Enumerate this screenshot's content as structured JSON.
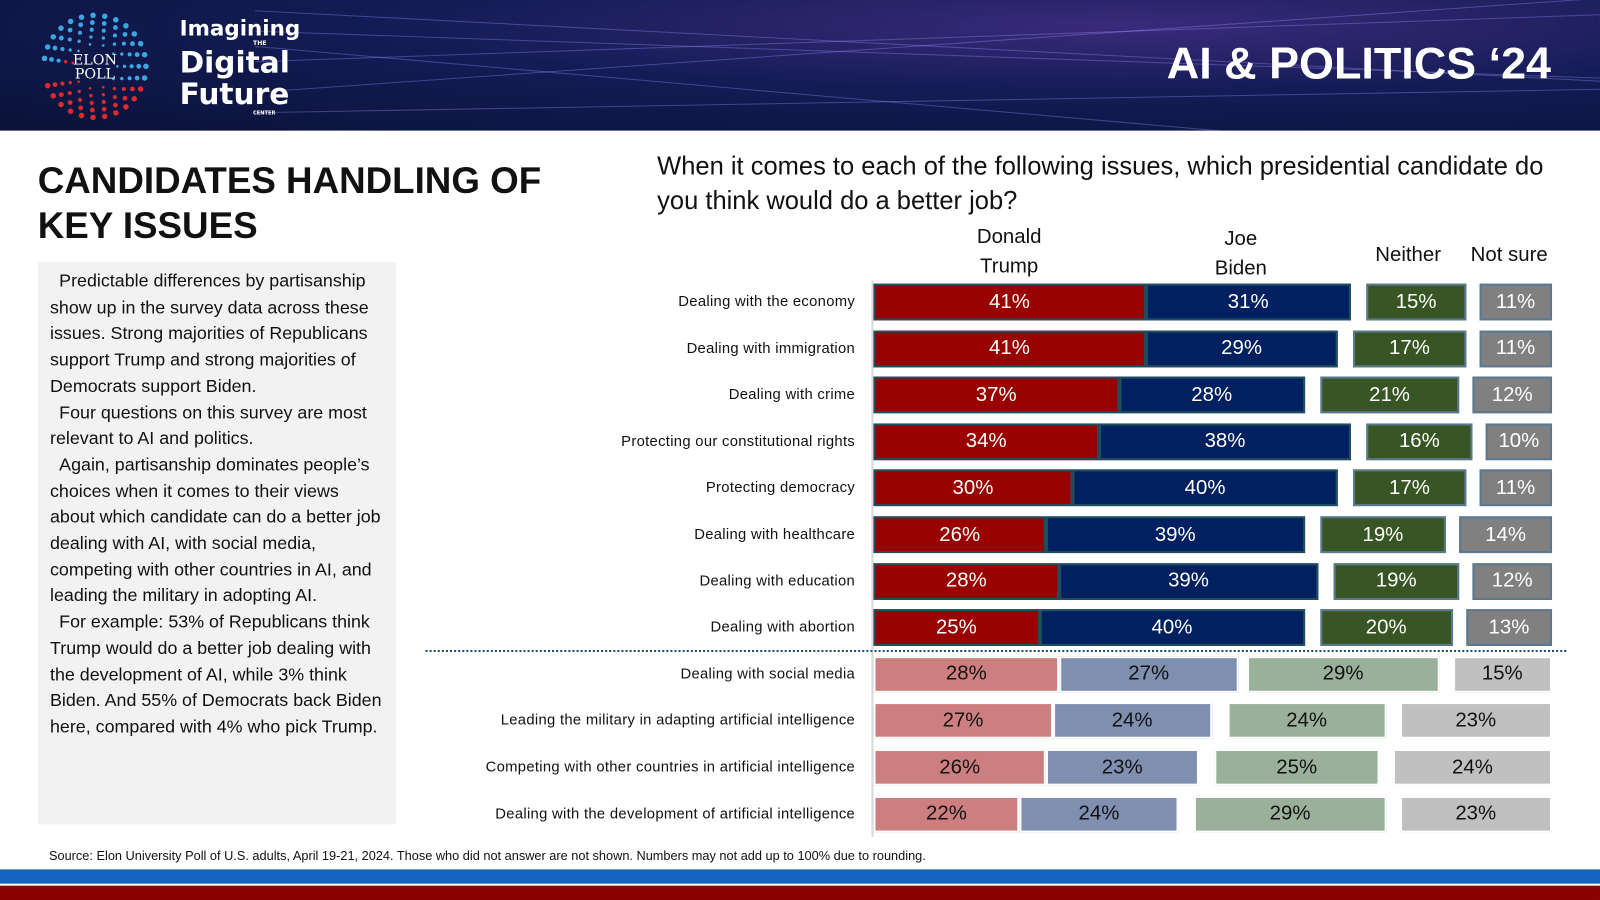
{
  "header": {
    "logo_text": [
      "ELON",
      "POLL"
    ],
    "center_name": {
      "line1": "Imagining",
      "the": "THE",
      "line2": "Digital",
      "line3": "Future",
      "center": "CENTER"
    },
    "title": "AI & POLITICS ‘24"
  },
  "slide_title": "CANDIDATES HANDLING OF KEY ISSUES",
  "text_box": [
    "Predictable differences by partisanship show up in the survey data across these issues. Strong majorities of Republicans support Trump and strong majorities of Democrats support Biden.",
    "Four questions on this survey are most relevant to AI and politics.",
    "Again, partisanship dominates people’s choices when it comes to their views about which candidate can do a better job dealing with AI, with social media, competing with other countries in AI, and leading the military in adopting AI.",
    "For example: 53% of Republicans think Trump would do a better job dealing with the development of AI, while 3% think Biden. And 55% of Democrats back Biden here, compared with 4% who pick Trump."
  ],
  "source": "Source: Elon University Poll of U.S. adults, April 19-21, 2024. Those who did not answer are not shown. Numbers may not add up to 100% due to rounding.",
  "chart_data": {
    "type": "bar",
    "stacked": true,
    "title": "When it comes to each of the following issues, which presidential candidate do you think would do a better job?",
    "series_names": [
      "Donald Trump",
      "Joe Biden",
      "Neither",
      "Not sure"
    ],
    "colors": {
      "trump": "#990000",
      "biden": "#002060",
      "neither": "#375623",
      "not_sure": "#808080",
      "trump_light": "#cd7f7f",
      "biden_light": "#7f8fb0",
      "neither_light": "#9bb09a",
      "not_sure_light": "#c0c0c0"
    },
    "categories": [
      "Dealing with the economy",
      "Dealing with immigration",
      "Dealing with crime",
      "Protecting our constitutional rights",
      "Protecting democracy",
      "Dealing with healthcare",
      "Dealing with education",
      "Dealing with abortion",
      "Dealing with social media",
      "Leading the military in adapting artificial intelligence",
      "Competing with other countries in artificial intelligence",
      "Dealing with the development of artificial intelligence"
    ],
    "ai_related": [
      false,
      false,
      false,
      false,
      false,
      false,
      false,
      false,
      true,
      true,
      true,
      true
    ],
    "series": [
      {
        "name": "Donald Trump",
        "values": [
          41,
          41,
          37,
          34,
          30,
          26,
          28,
          25,
          28,
          27,
          26,
          22
        ]
      },
      {
        "name": "Joe Biden",
        "values": [
          31,
          29,
          28,
          38,
          40,
          39,
          39,
          40,
          27,
          24,
          23,
          24
        ]
      },
      {
        "name": "Neither",
        "values": [
          15,
          17,
          21,
          16,
          17,
          19,
          19,
          20,
          29,
          24,
          25,
          29
        ]
      },
      {
        "name": "Not sure",
        "values": [
          11,
          11,
          12,
          10,
          11,
          14,
          12,
          13,
          15,
          23,
          24,
          23
        ]
      }
    ],
    "unit": "%"
  }
}
